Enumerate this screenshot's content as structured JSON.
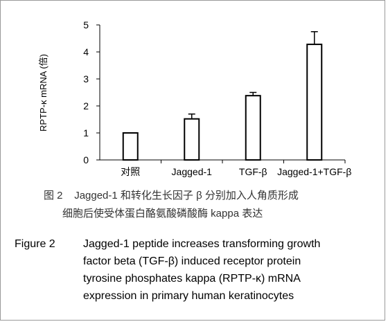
{
  "chart_data": {
    "type": "bar",
    "categories": [
      "对照",
      "Jagged-1",
      "TGF-β",
      "Jagged-1+TGF-β"
    ],
    "values": [
      1.0,
      1.52,
      2.38,
      4.28
    ],
    "errors": [
      0.0,
      0.18,
      0.12,
      0.47
    ],
    "ylabel": "RPTP-κ mRNA (倍)",
    "xlabel": "",
    "ylim": [
      0,
      5
    ],
    "yticks": [
      0,
      1,
      2,
      3,
      4,
      5
    ],
    "grid": false,
    "bar_fill": "#ffffff",
    "bar_stroke": "#000000"
  },
  "caption_cn": {
    "label": "图 2",
    "line1": "Jagged-1 和转化生长因子 β 分别加入人角质形成",
    "line2": "细胞后使受体蛋白酪氨酸磷酸酶 kappa 表达"
  },
  "caption_en": {
    "label": "Figure 2",
    "lines": [
      "Jagged-1 peptide increases transforming growth",
      "factor beta (TGF-β) induced receptor protein",
      "tyrosine phosphates kappa (RPTP-κ) mRNA",
      "expression in primary human keratinocytes"
    ]
  }
}
